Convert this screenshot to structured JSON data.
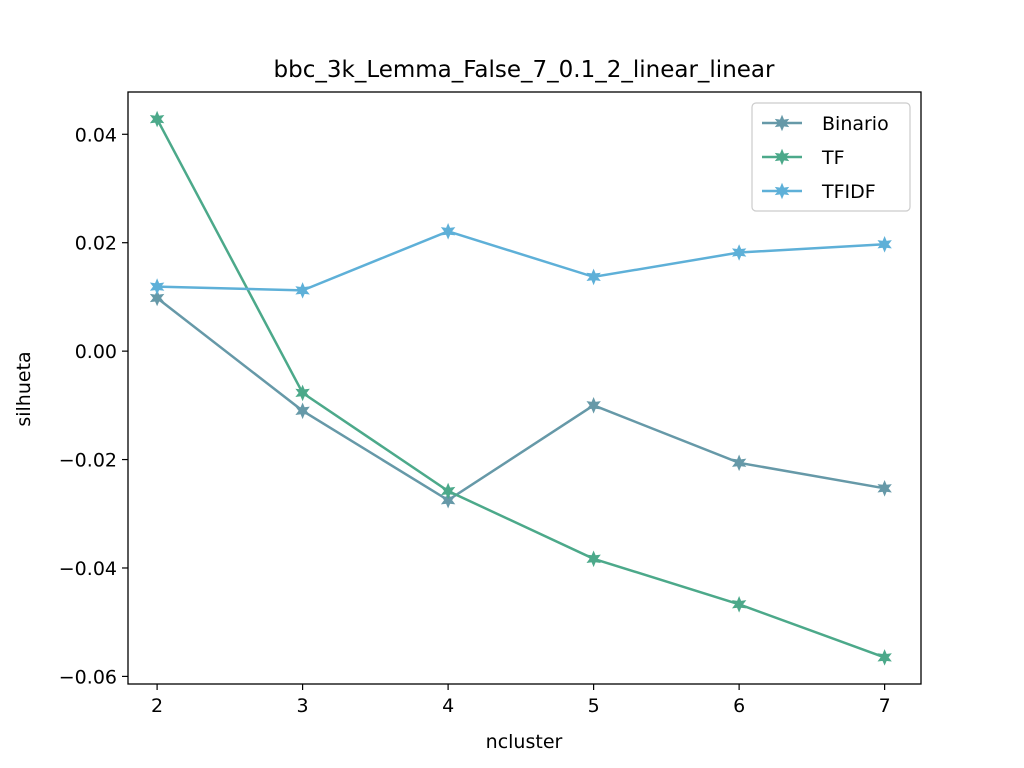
{
  "chart_data": {
    "type": "line",
    "title": "bbc_3k_Lemma_False_7_0.1_2_linear_linear",
    "xlabel": "ncluster",
    "ylabel": "silhueta",
    "x": [
      2,
      3,
      4,
      5,
      6,
      7
    ],
    "xlim": [
      1.8,
      7.25
    ],
    "ylim": [
      -0.0614,
      0.0478
    ],
    "xticks": [
      2,
      3,
      4,
      5,
      6,
      7
    ],
    "xtick_labels": [
      "2",
      "3",
      "4",
      "5",
      "6",
      "7"
    ],
    "yticks": [
      0.04,
      0.02,
      0.0,
      -0.02,
      -0.04,
      -0.06
    ],
    "ytick_labels": [
      "0.04",
      "0.02",
      "0.00",
      "−0.02",
      "−0.04",
      "−0.06"
    ],
    "grid": false,
    "legend_position": "top-right",
    "marker": "star",
    "series": [
      {
        "name": "Binario",
        "color": "#6699a8",
        "values": [
          0.0098,
          -0.011,
          -0.0275,
          -0.01,
          -0.0206,
          -0.0253
        ]
      },
      {
        "name": "TF",
        "color": "#4ca98a",
        "values": [
          0.0428,
          -0.0077,
          -0.0258,
          -0.0383,
          -0.0467,
          -0.0565
        ]
      },
      {
        "name": "TFIDF",
        "color": "#5eb0d8",
        "values": [
          0.0119,
          0.0112,
          0.0221,
          0.0137,
          0.0182,
          0.0197
        ]
      }
    ]
  }
}
